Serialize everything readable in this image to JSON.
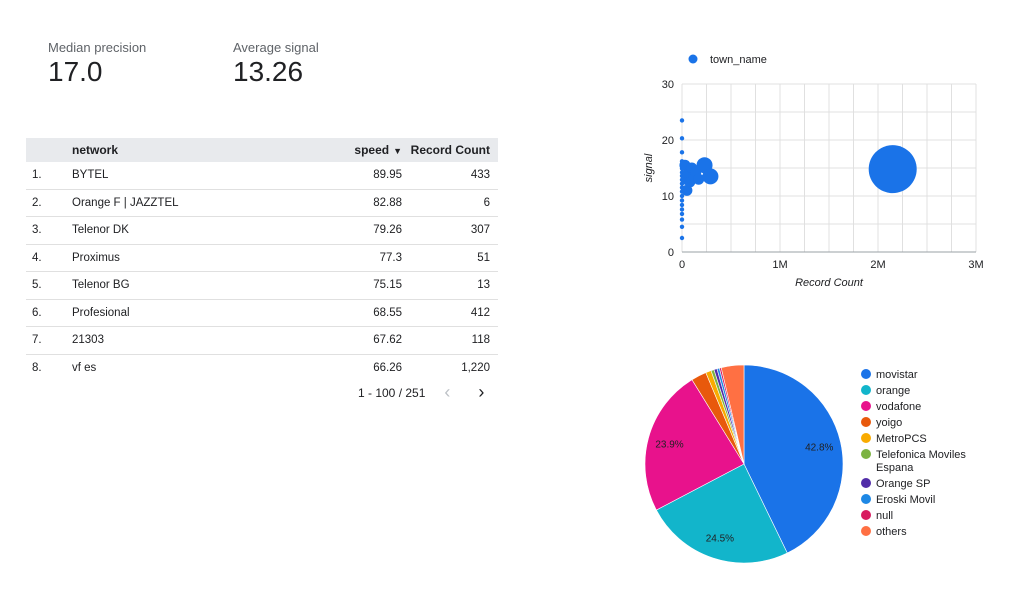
{
  "scorecards": [
    {
      "label": "Median precision",
      "value": "17.0"
    },
    {
      "label": "Average signal",
      "value": "13.26"
    }
  ],
  "table": {
    "headers": {
      "network": "network",
      "speed": "speed",
      "count": "Record Count",
      "sort_indicator": "▼"
    },
    "rows": [
      {
        "index": "1.",
        "network": "BYTEL",
        "speed": "89.95",
        "count": "433"
      },
      {
        "index": "2.",
        "network": "Orange F | JAZZTEL",
        "speed": "82.88",
        "count": "6"
      },
      {
        "index": "3.",
        "network": "Telenor DK",
        "speed": "79.26",
        "count": "307"
      },
      {
        "index": "4.",
        "network": "Proximus",
        "speed": "77.3",
        "count": "51"
      },
      {
        "index": "5.",
        "network": "Telenor BG",
        "speed": "75.15",
        "count": "13"
      },
      {
        "index": "6.",
        "network": "Profesional",
        "speed": "68.55",
        "count": "412"
      },
      {
        "index": "7.",
        "network": "21303",
        "speed": "67.62",
        "count": "118"
      },
      {
        "index": "8.",
        "network": "vf es",
        "speed": "66.26",
        "count": "1,220"
      }
    ],
    "pagination": {
      "text": "1 - 100 / 251",
      "prev": "‹",
      "next": "›"
    }
  },
  "chart_data": [
    {
      "type": "scatter",
      "legend": "town_name",
      "legend_position": "top",
      "xlabel": "Record Count",
      "ylabel": "signal",
      "xlim": [
        0,
        3000000
      ],
      "ylim": [
        0,
        30
      ],
      "x_ticks": [
        "0",
        "1M",
        "2M",
        "3M"
      ],
      "y_ticks": [
        "0",
        "10",
        "20",
        "30"
      ],
      "color": "#1a73e8",
      "points": [
        {
          "x": 2150000,
          "y": 14.8,
          "size": 3
        },
        {
          "x": 0,
          "y": 23.5,
          "size": 0
        },
        {
          "x": 0,
          "y": 20.3,
          "size": 0
        },
        {
          "x": 0,
          "y": 17.8,
          "size": 0
        },
        {
          "x": 0,
          "y": 16.2,
          "size": 0
        },
        {
          "x": 0,
          "y": 15.6,
          "size": 0
        },
        {
          "x": 0,
          "y": 14.9,
          "size": 0
        },
        {
          "x": 0,
          "y": 14.2,
          "size": 0
        },
        {
          "x": 0,
          "y": 13.6,
          "size": 0
        },
        {
          "x": 0,
          "y": 12.9,
          "size": 0
        },
        {
          "x": 0,
          "y": 12.2,
          "size": 0
        },
        {
          "x": 0,
          "y": 11.5,
          "size": 0
        },
        {
          "x": 0,
          "y": 10.8,
          "size": 0
        },
        {
          "x": 0,
          "y": 10.0,
          "size": 0
        },
        {
          "x": 0,
          "y": 9.2,
          "size": 0
        },
        {
          "x": 0,
          "y": 8.4,
          "size": 0
        },
        {
          "x": 0,
          "y": 7.6,
          "size": 0
        },
        {
          "x": 0,
          "y": 6.8,
          "size": 0
        },
        {
          "x": 0,
          "y": 5.8,
          "size": 0
        },
        {
          "x": 0,
          "y": 4.5,
          "size": 0
        },
        {
          "x": 0,
          "y": 2.5,
          "size": 0
        },
        {
          "x": 30000,
          "y": 15.5,
          "size": 1
        },
        {
          "x": 40000,
          "y": 13.0,
          "size": 1
        },
        {
          "x": 50000,
          "y": 11.0,
          "size": 1
        },
        {
          "x": 60000,
          "y": 14.0,
          "size": 1
        },
        {
          "x": 80000,
          "y": 12.5,
          "size": 1
        },
        {
          "x": 100000,
          "y": 15.0,
          "size": 1
        },
        {
          "x": 120000,
          "y": 13.5,
          "size": 1
        },
        {
          "x": 140000,
          "y": 14.2,
          "size": 1
        },
        {
          "x": 170000,
          "y": 13.0,
          "size": 1
        },
        {
          "x": 230000,
          "y": 15.5,
          "size": 2
        },
        {
          "x": 290000,
          "y": 13.5,
          "size": 2
        }
      ]
    },
    {
      "type": "pie",
      "legend_position": "right",
      "slices": [
        {
          "label": "movistar",
          "value": 42.8,
          "color": "#1a73e8",
          "show_label": "42.8%"
        },
        {
          "label": "orange",
          "value": 24.5,
          "color": "#12b5cb",
          "show_label": "24.5%"
        },
        {
          "label": "vodafone",
          "value": 23.9,
          "color": "#e8128c",
          "show_label": "23.9%"
        },
        {
          "label": "yoigo",
          "value": 2.5,
          "color": "#e8590c",
          "show_label": ""
        },
        {
          "label": "MetroPCS",
          "value": 0.9,
          "color": "#f9ab00",
          "show_label": ""
        },
        {
          "label": "Telefonica Moviles Espana",
          "value": 0.5,
          "color": "#7cb342",
          "show_label": ""
        },
        {
          "label": "Orange SP",
          "value": 0.5,
          "color": "#512da8",
          "show_label": ""
        },
        {
          "label": "Eroski Movil",
          "value": 0.4,
          "color": "#1e88e5",
          "show_label": ""
        },
        {
          "label": "null",
          "value": 0.3,
          "color": "#d81b60",
          "show_label": ""
        },
        {
          "label": "others",
          "value": 3.7,
          "color": "#ff7043",
          "show_label": ""
        }
      ]
    }
  ]
}
